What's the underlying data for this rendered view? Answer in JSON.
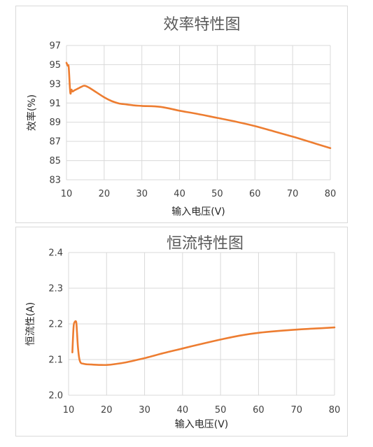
{
  "chart_data": [
    {
      "type": "line",
      "title": "效率特性图",
      "xlabel": "输入电压(V)",
      "ylabel": "效率(%)",
      "xlim": [
        10,
        80
      ],
      "ylim": [
        83,
        97
      ],
      "xticks": [
        10,
        20,
        30,
        40,
        50,
        60,
        70,
        80
      ],
      "yticks": [
        83,
        85,
        87,
        89,
        91,
        93,
        95,
        97
      ],
      "grid": true,
      "color": "#ed7d31",
      "series": [
        {
          "x": [
            10,
            10.3,
            10.6,
            11.0,
            11.3,
            11.6,
            12.0,
            12.5,
            13,
            14,
            14.8,
            16,
            18,
            20,
            22,
            24,
            26,
            28,
            30,
            35,
            40,
            45,
            50,
            55,
            60,
            65,
            70,
            75,
            80
          ],
          "y": [
            95.2,
            94.9,
            94.7,
            92.1,
            92.4,
            92.2,
            92.3,
            92.4,
            92.5,
            92.7,
            92.8,
            92.6,
            92.1,
            91.6,
            91.2,
            90.95,
            90.85,
            90.75,
            90.7,
            90.6,
            90.2,
            89.85,
            89.45,
            89.05,
            88.6,
            88.05,
            87.5,
            86.9,
            86.3
          ]
        }
      ]
    },
    {
      "type": "line",
      "title": "恒流特性图",
      "xlabel": "输入电压(V)",
      "ylabel": "恒流性(A)",
      "xlim": [
        10,
        80
      ],
      "ylim": [
        2.0,
        2.4
      ],
      "xticks": [
        10,
        20,
        30,
        40,
        50,
        60,
        70,
        80
      ],
      "yticks": [
        "2.0",
        "2.1",
        "2.2",
        "2.3",
        "2.4"
      ],
      "grid": true,
      "color": "#ed7d31",
      "series": [
        {
          "x": [
            11,
            11.3,
            11.6,
            12.0,
            12.2,
            12.5,
            13,
            14,
            16,
            18,
            20,
            22,
            25,
            30,
            35,
            40,
            45,
            50,
            55,
            60,
            65,
            70,
            75,
            80
          ],
          "y": [
            2.12,
            2.19,
            2.205,
            2.205,
            2.18,
            2.13,
            2.095,
            2.088,
            2.086,
            2.085,
            2.085,
            2.087,
            2.092,
            2.104,
            2.118,
            2.131,
            2.144,
            2.156,
            2.167,
            2.175,
            2.18,
            2.184,
            2.187,
            2.19
          ]
        }
      ]
    }
  ]
}
